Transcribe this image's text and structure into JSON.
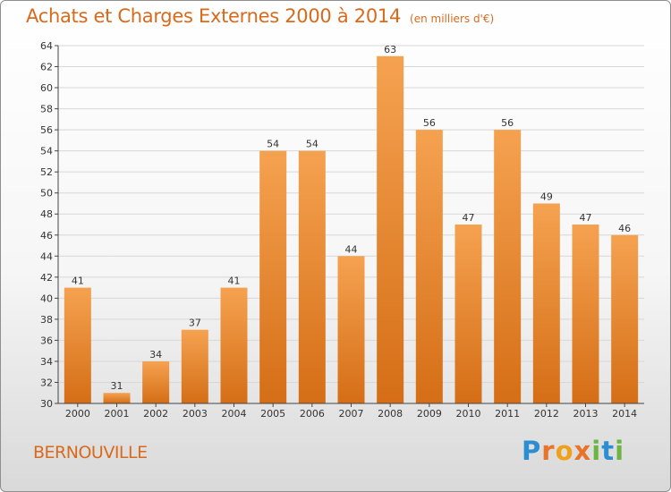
{
  "header": {
    "title": "Achats et Charges Externes 2000 à 2014",
    "subtitle": "(en milliers d'€)"
  },
  "footer": {
    "place": "BERNOUVILLE",
    "logo": {
      "text": "Proxiti",
      "colors": [
        "#2a8ed0",
        "#e8742a",
        "#f1a019",
        "#6bb642"
      ]
    }
  },
  "colors": {
    "bar_top": "#f5a250",
    "bar_bottom": "#d56e16",
    "axis": "#444444",
    "grid": "#d7d7d7",
    "title": "#d86a1c"
  },
  "chart_data": {
    "type": "bar",
    "title": "Achats et Charges Externes 2000 à 2014",
    "subtitle": "(en milliers d'€)",
    "xlabel": "",
    "ylabel": "",
    "categories": [
      "2000",
      "2001",
      "2002",
      "2003",
      "2004",
      "2005",
      "2006",
      "2007",
      "2008",
      "2009",
      "2010",
      "2011",
      "2012",
      "2013",
      "2014"
    ],
    "values": [
      41,
      31,
      34,
      37,
      41,
      54,
      54,
      44,
      63,
      56,
      47,
      56,
      49,
      47,
      46
    ],
    "ylim": [
      30,
      64
    ],
    "yticks": [
      30,
      32,
      34,
      36,
      38,
      40,
      42,
      44,
      46,
      48,
      50,
      52,
      54,
      56,
      58,
      60,
      62,
      64
    ],
    "grid": true,
    "data_labels": true,
    "legend": "none"
  }
}
